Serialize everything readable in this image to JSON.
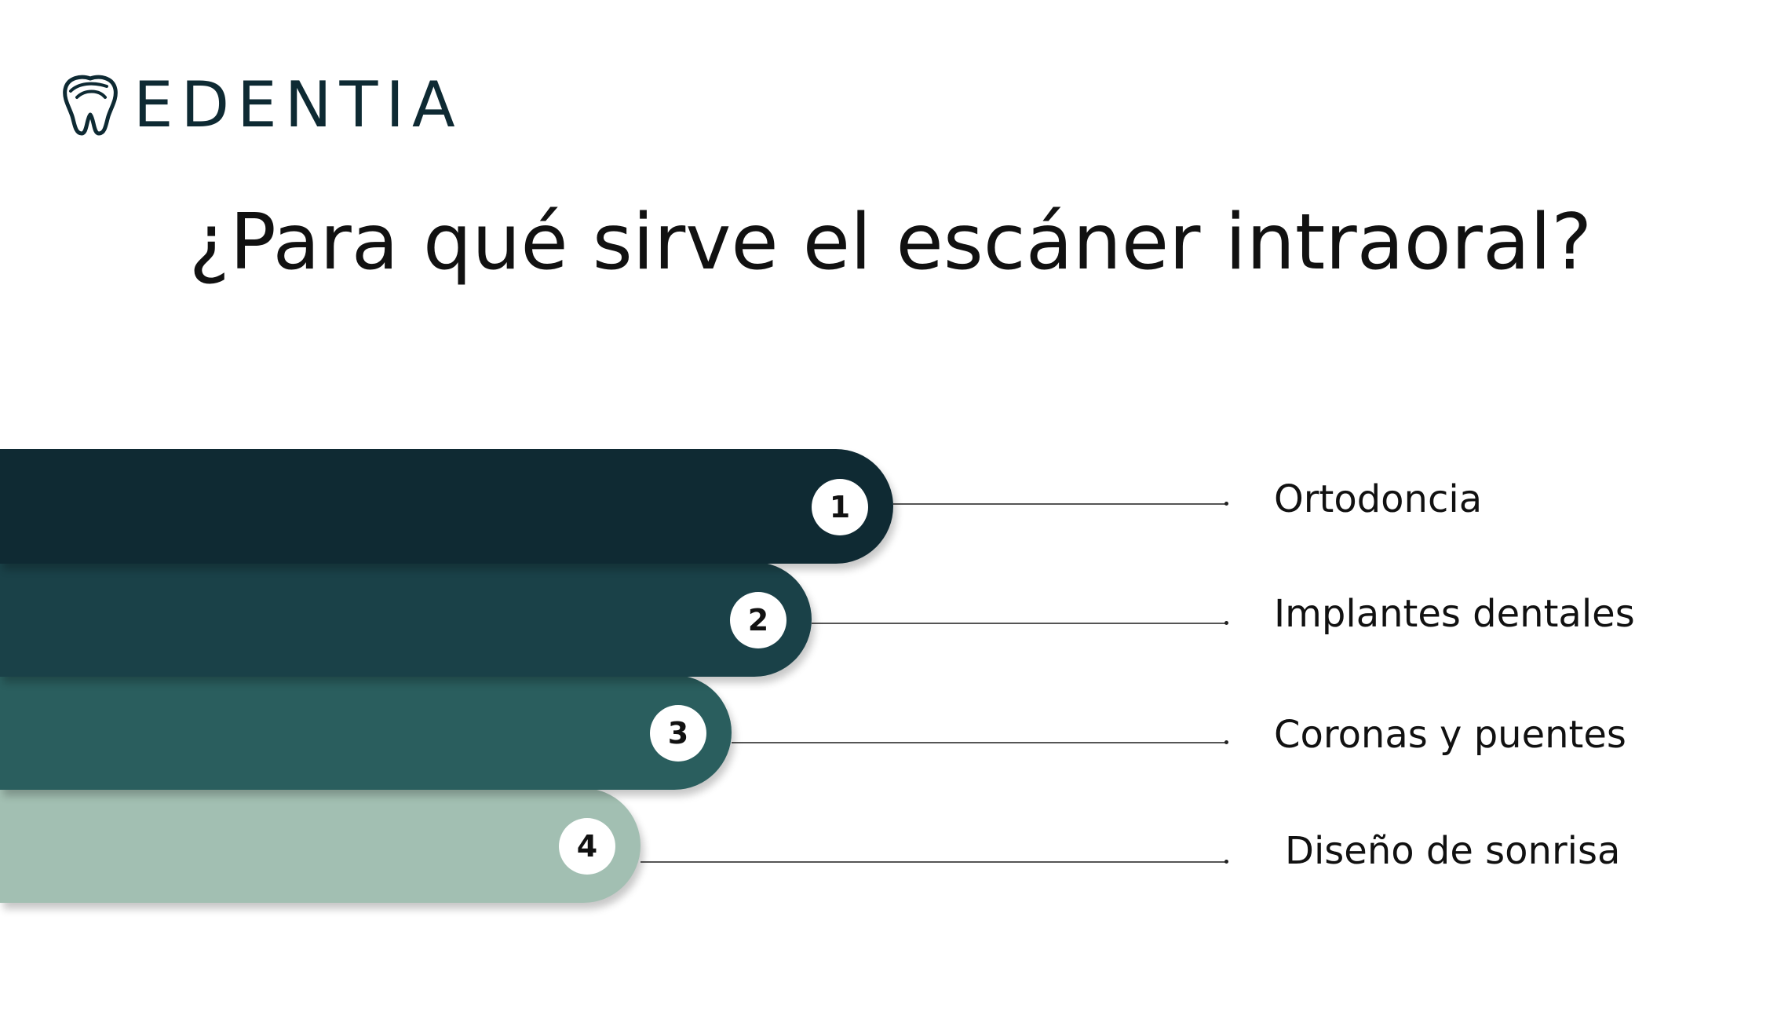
{
  "brand": {
    "name": "EDENTIA",
    "icon": "tooth-icon",
    "color": "#0e2a33"
  },
  "title": "¿Para qué sirve el escáner intraoral?",
  "steps": [
    {
      "number": "1",
      "label": "Ortodoncia",
      "color": "#0f2a33"
    },
    {
      "number": "2",
      "label": "Implantes dentales",
      "color": "#1a4148"
    },
    {
      "number": "3",
      "label": "Coronas y puentes",
      "color": "#2a5e5e"
    },
    {
      "number": "4",
      "label": "Diseño de sonrisa",
      "color": "#a2bfb2"
    }
  ]
}
